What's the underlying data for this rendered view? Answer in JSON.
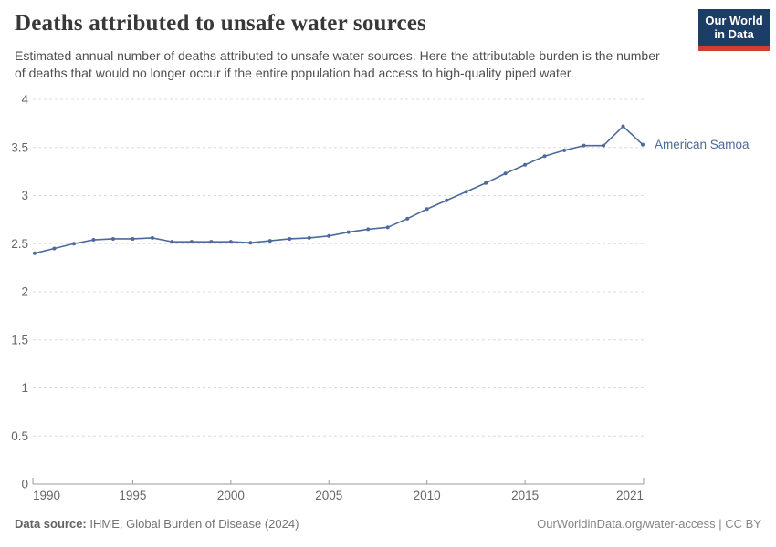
{
  "header": {
    "title": "Deaths attributed to unsafe water sources",
    "subtitle": "Estimated annual number of deaths attributed to unsafe water sources. Here the attributable burden is the number of deaths that would no longer occur if the entire population had access to high-quality piped water.",
    "logo": {
      "line1": "Our World",
      "line2": "in Data",
      "bg_color": "#1c3d66",
      "accent_color": "#d63b2f"
    }
  },
  "chart_data": {
    "type": "line",
    "title": "Deaths attributed to unsafe water sources",
    "xlabel": "",
    "ylabel": "",
    "xlim": [
      1990,
      2021
    ],
    "ylim": [
      0,
      4
    ],
    "x_ticks": [
      1990,
      1995,
      2000,
      2005,
      2010,
      2015,
      2021
    ],
    "y_ticks": [
      0,
      0.5,
      1,
      1.5,
      2,
      2.5,
      3,
      3.5,
      4
    ],
    "grid": "dashed-horizontal",
    "legend_position": "end-of-line-label",
    "series": [
      {
        "name": "American Samoa",
        "color": "#4c6a9c",
        "x": [
          1990,
          1991,
          1992,
          1993,
          1994,
          1995,
          1996,
          1997,
          1998,
          1999,
          2000,
          2001,
          2002,
          2003,
          2004,
          2005,
          2006,
          2007,
          2008,
          2009,
          2010,
          2011,
          2012,
          2013,
          2014,
          2015,
          2016,
          2017,
          2018,
          2019,
          2020,
          2021
        ],
        "values": [
          2.4,
          2.45,
          2.5,
          2.54,
          2.55,
          2.55,
          2.56,
          2.52,
          2.52,
          2.52,
          2.52,
          2.51,
          2.53,
          2.55,
          2.56,
          2.58,
          2.62,
          2.65,
          2.67,
          2.76,
          2.86,
          2.95,
          3.04,
          3.13,
          3.23,
          3.32,
          3.41,
          3.47,
          3.52,
          3.52,
          3.72,
          3.53
        ]
      }
    ]
  },
  "footer": {
    "source_label": "Data source:",
    "source_value": " IHME, Global Burden of Disease (2024)",
    "rights": "OurWorldinData.org/water-access | CC BY"
  }
}
